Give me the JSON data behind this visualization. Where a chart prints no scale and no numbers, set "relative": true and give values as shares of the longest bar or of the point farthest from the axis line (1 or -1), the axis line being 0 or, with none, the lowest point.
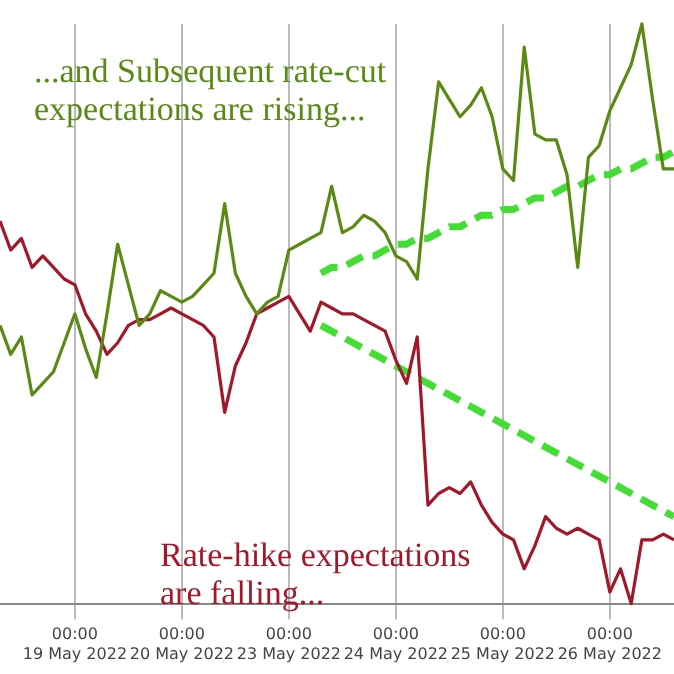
{
  "chart_data": {
    "type": "line",
    "relative": true,
    "grid": "x",
    "legend": false,
    "marker": "none",
    "categories": [
      null,
      null,
      null,
      null,
      null,
      null,
      null,
      "00:00 19 May 2022",
      null,
      null,
      null,
      null,
      null,
      null,
      null,
      null,
      null,
      "00:00 20 May 2022",
      null,
      null,
      null,
      null,
      null,
      null,
      null,
      null,
      null,
      "00:00 23 May 2022",
      null,
      null,
      null,
      null,
      null,
      null,
      null,
      null,
      null,
      "00:00 24 May 2022",
      null,
      null,
      null,
      null,
      null,
      null,
      null,
      null,
      null,
      "00:00 25 May 2022",
      null,
      null,
      null,
      null,
      null,
      null,
      null,
      null,
      null,
      "00:00 26 May 2022",
      null,
      null,
      null,
      null,
      null,
      null
    ],
    "annotations": [
      "...and Subsequent rate-cut expectations are rising...",
      "Rate-hike expectations are falling..."
    ],
    "series": [
      {
        "color": "#5a8a14",
        "line_style": "solid",
        "values": [
          0.48,
          0.43,
          0.46,
          0.36,
          0.38,
          0.4,
          0.45,
          0.5,
          0.44,
          0.39,
          0.5,
          0.62,
          0.55,
          0.48,
          0.5,
          0.54,
          0.53,
          0.52,
          0.53,
          0.55,
          0.57,
          0.69,
          0.57,
          0.53,
          0.5,
          0.52,
          0.53,
          0.61,
          0.62,
          0.63,
          0.64,
          0.72,
          0.64,
          0.65,
          0.67,
          0.66,
          0.64,
          0.6,
          0.59,
          0.56,
          0.75,
          0.9,
          0.87,
          0.84,
          0.86,
          0.89,
          0.84,
          0.75,
          0.73,
          0.96,
          0.81,
          0.8,
          0.8,
          0.74,
          0.58,
          0.77,
          0.79,
          0.85,
          0.89,
          0.93,
          1.0,
          0.87,
          0.75,
          0.75
        ]
      },
      {
        "color": "#a0182a",
        "line_style": "solid",
        "values": [
          0.66,
          0.61,
          0.63,
          0.58,
          0.6,
          0.58,
          0.56,
          0.55,
          0.5,
          0.47,
          0.43,
          0.45,
          0.48,
          0.49,
          0.49,
          0.5,
          0.51,
          0.5,
          0.49,
          0.48,
          0.46,
          0.33,
          0.41,
          0.45,
          0.5,
          0.51,
          0.52,
          0.53,
          0.5,
          0.47,
          0.52,
          0.51,
          0.5,
          0.5,
          0.49,
          0.48,
          0.47,
          0.42,
          0.38,
          0.46,
          0.17,
          0.19,
          0.2,
          0.19,
          0.21,
          0.17,
          0.14,
          0.12,
          0.11,
          0.06,
          0.1,
          0.15,
          0.13,
          0.12,
          0.13,
          0.12,
          0.11,
          0.02,
          0.06,
          0,
          0.11,
          0.11,
          0.12,
          0.11
        ]
      },
      {
        "color": "#44dd33",
        "line_style": "dashed",
        "values": [
          null,
          null,
          null,
          null,
          null,
          null,
          null,
          null,
          null,
          null,
          null,
          null,
          null,
          null,
          null,
          null,
          null,
          null,
          null,
          null,
          null,
          null,
          null,
          null,
          null,
          null,
          null,
          null,
          null,
          null,
          0.57,
          0.58,
          0.58,
          0.59,
          0.6,
          0.6,
          0.61,
          0.62,
          0.62,
          0.63,
          0.63,
          0.64,
          0.65,
          0.65,
          0.66,
          0.67,
          0.67,
          0.68,
          0.68,
          0.69,
          0.7,
          0.7,
          0.71,
          0.72,
          0.72,
          0.73,
          0.74,
          0.74,
          0.75,
          0.75,
          0.76,
          0.77,
          0.77,
          0.78
        ]
      },
      {
        "color": "#44dd33",
        "line_style": "dashed",
        "values": [
          null,
          null,
          null,
          null,
          null,
          null,
          null,
          null,
          null,
          null,
          null,
          null,
          null,
          null,
          null,
          null,
          null,
          null,
          null,
          null,
          null,
          null,
          null,
          null,
          null,
          null,
          null,
          null,
          null,
          null,
          0.48,
          0.47,
          0.46,
          0.45,
          0.44,
          0.43,
          0.42,
          0.41,
          0.4,
          0.39,
          0.38,
          0.37,
          0.36,
          0.35,
          0.34,
          0.33,
          0.32,
          0.31,
          0.3,
          0.29,
          0.28,
          0.27,
          0.26,
          0.25,
          0.24,
          0.23,
          0.22,
          0.21,
          0.2,
          0.19,
          0.18,
          0.17,
          0.16,
          0.15
        ]
      }
    ]
  }
}
